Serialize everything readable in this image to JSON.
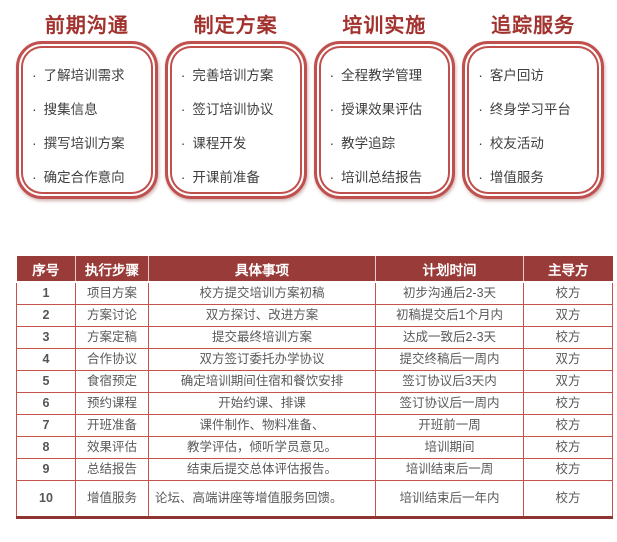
{
  "ui": {
    "bullet": "·"
  },
  "colors": {
    "phase_title": "#a2322e",
    "box_border": "#c0504d",
    "table_header_bg": "#993b38",
    "table_header_text": "#ffffff",
    "table_line": "#c4524d",
    "table_bottom_border": "#8e3432",
    "body_text": "#595959"
  },
  "phases": [
    {
      "title": "前期沟通",
      "items": [
        "了解培训需求",
        "搜集信息",
        "撰写培训方案",
        "确定合作意向"
      ]
    },
    {
      "title": "制定方案",
      "items": [
        "完善培训方案",
        "签订培训协议",
        "课程开发",
        "开课前准备"
      ]
    },
    {
      "title": "培训实施",
      "items": [
        "全程教学管理",
        "授课效果评估",
        "教学追踪",
        "培训总结报告"
      ]
    },
    {
      "title": "追踪服务",
      "items": [
        "客户回访",
        "终身学习平台",
        "校友活动",
        "增值服务"
      ]
    }
  ],
  "table": {
    "headers": [
      "序号",
      "执行步骤",
      "具体事项",
      "计划时间",
      "主导方"
    ],
    "rows": [
      {
        "no": "1",
        "step": "项目方案",
        "detail": "校方提交培训方案初稿",
        "time": "初步沟通后2-3天",
        "lead": "校方"
      },
      {
        "no": "2",
        "step": "方案讨论",
        "detail": "双方探讨、改进方案",
        "time": "初稿提交后1个月内",
        "lead": "双方"
      },
      {
        "no": "3",
        "step": "方案定稿",
        "detail": "提交最终培训方案",
        "time": "达成一致后2-3天",
        "lead": "校方"
      },
      {
        "no": "4",
        "step": "合作协议",
        "detail": "双方签订委托办学协议",
        "time": "提交终稿后一周内",
        "lead": "双方"
      },
      {
        "no": "5",
        "step": "食宿预定",
        "detail": "确定培训期间住宿和餐饮安排",
        "time": "签订协议后3天内",
        "lead": "双方"
      },
      {
        "no": "6",
        "step": "预约课程",
        "detail": "开始约课、排课",
        "time": "签订协议后一周内",
        "lead": "校方"
      },
      {
        "no": "7",
        "step": "开班准备",
        "detail": "课件制作、物料准备、",
        "time": "开班前一周",
        "lead": "校方"
      },
      {
        "no": "8",
        "step": "效果评估",
        "detail": "教学评估，倾听学员意见。",
        "time": "培训期间",
        "lead": "校方"
      },
      {
        "no": "9",
        "step": "总结报告",
        "detail": "结束后提交总体评估报告。",
        "time": "培训结束后一周",
        "lead": "校方"
      },
      {
        "no": "10",
        "step": "增值服务",
        "detail": "论坛、高端讲座等增值服务回馈。",
        "time": "培训结束后一年内",
        "lead": "校方"
      }
    ]
  }
}
